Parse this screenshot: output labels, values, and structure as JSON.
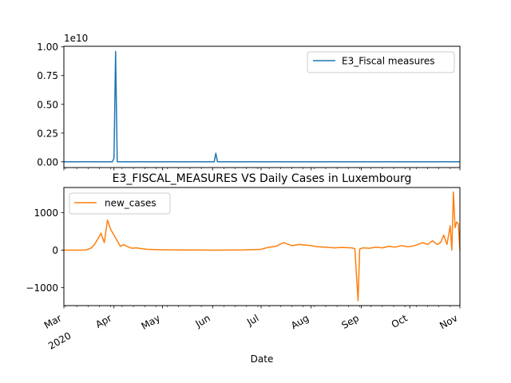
{
  "chart_data": [
    {
      "type": "line",
      "title": "",
      "xlabel": "",
      "ylabel": "",
      "offset_text": "1e10",
      "xlim": [
        "2020-03-01",
        "2020-11-01"
      ],
      "ylim": [
        -0.5,
        10.05
      ],
      "ytick_values": [
        0,
        2.5,
        5,
        7.5,
        10
      ],
      "yticks": [
        "0.00",
        "0.25",
        "0.50",
        "0.75",
        "1.00"
      ],
      "legend": {
        "location": "upper right",
        "entries": [
          "E3_Fiscal measures"
        ]
      },
      "series": [
        {
          "name": "E3_Fiscal measures",
          "color": "#1f77b4",
          "points": [
            [
              "2020-03-01",
              0
            ],
            [
              "2020-03-31",
              0
            ],
            [
              "2020-04-01",
              0.3
            ],
            [
              "2020-04-02",
              9.6
            ],
            [
              "2020-04-03",
              0
            ],
            [
              "2020-06-02",
              0
            ],
            [
              "2020-06-03",
              0.75
            ],
            [
              "2020-06-04",
              0
            ],
            [
              "2020-11-01",
              0
            ]
          ]
        }
      ]
    },
    {
      "type": "line",
      "title": "E3_FISCAL_MEASURES VS Daily Cases in Luxembourg",
      "xlabel": "Date",
      "ylabel": "",
      "xlim": [
        "2020-03-01",
        "2020-11-01"
      ],
      "ylim": [
        -1480,
        1670
      ],
      "ytick_values": [
        -1000,
        0,
        1000
      ],
      "yticks": [
        "−1000",
        "0",
        "1000"
      ],
      "xticks": [
        {
          "date": "2020-03-01",
          "label": "Mar",
          "sublabel": "2020"
        },
        {
          "date": "2020-04-01",
          "label": "Apr"
        },
        {
          "date": "2020-05-01",
          "label": "May"
        },
        {
          "date": "2020-06-01",
          "label": "Jun"
        },
        {
          "date": "2020-07-01",
          "label": "Jul"
        },
        {
          "date": "2020-08-01",
          "label": "Aug"
        },
        {
          "date": "2020-09-01",
          "label": "Sep"
        },
        {
          "date": "2020-10-01",
          "label": "Oct"
        },
        {
          "date": "2020-11-01",
          "label": "Nov"
        }
      ],
      "legend": {
        "location": "upper left",
        "entries": [
          "new_cases"
        ]
      },
      "series": [
        {
          "name": "new_cases",
          "color": "#ff7f0e",
          "points": [
            [
              "2020-03-01",
              0
            ],
            [
              "2020-03-10",
              0
            ],
            [
              "2020-03-15",
              5
            ],
            [
              "2020-03-18",
              60
            ],
            [
              "2020-03-20",
              150
            ],
            [
              "2020-03-22",
              300
            ],
            [
              "2020-03-24",
              450
            ],
            [
              "2020-03-26",
              200
            ],
            [
              "2020-03-28",
              800
            ],
            [
              "2020-03-30",
              550
            ],
            [
              "2020-04-01",
              400
            ],
            [
              "2020-04-03",
              250
            ],
            [
              "2020-04-05",
              100
            ],
            [
              "2020-04-07",
              150
            ],
            [
              "2020-04-09",
              100
            ],
            [
              "2020-04-12",
              50
            ],
            [
              "2020-04-15",
              60
            ],
            [
              "2020-04-18",
              40
            ],
            [
              "2020-04-22",
              20
            ],
            [
              "2020-04-26",
              15
            ],
            [
              "2020-05-01",
              10
            ],
            [
              "2020-05-10",
              5
            ],
            [
              "2020-06-01",
              0
            ],
            [
              "2020-06-20",
              5
            ],
            [
              "2020-07-01",
              20
            ],
            [
              "2020-07-05",
              70
            ],
            [
              "2020-07-10",
              100
            ],
            [
              "2020-07-15",
              200
            ],
            [
              "2020-07-20",
              120
            ],
            [
              "2020-07-25",
              150
            ],
            [
              "2020-08-01",
              120
            ],
            [
              "2020-08-05",
              90
            ],
            [
              "2020-08-10",
              80
            ],
            [
              "2020-08-15",
              60
            ],
            [
              "2020-08-20",
              70
            ],
            [
              "2020-08-26",
              60
            ],
            [
              "2020-08-28",
              40
            ],
            [
              "2020-08-30",
              -1350
            ],
            [
              "2020-08-31",
              30
            ],
            [
              "2020-09-02",
              60
            ],
            [
              "2020-09-06",
              50
            ],
            [
              "2020-09-10",
              80
            ],
            [
              "2020-09-14",
              60
            ],
            [
              "2020-09-18",
              100
            ],
            [
              "2020-09-22",
              80
            ],
            [
              "2020-09-26",
              120
            ],
            [
              "2020-09-30",
              90
            ],
            [
              "2020-10-03",
              110
            ],
            [
              "2020-10-06",
              150
            ],
            [
              "2020-10-09",
              200
            ],
            [
              "2020-10-12",
              150
            ],
            [
              "2020-10-15",
              250
            ],
            [
              "2020-10-18",
              150
            ],
            [
              "2020-10-20",
              200
            ],
            [
              "2020-10-22",
              400
            ],
            [
              "2020-10-24",
              150
            ],
            [
              "2020-10-26",
              650
            ],
            [
              "2020-10-27",
              0
            ],
            [
              "2020-10-28",
              1550
            ],
            [
              "2020-10-29",
              600
            ],
            [
              "2020-10-30",
              750
            ],
            [
              "2020-10-31",
              700
            ],
            [
              "2020-11-01",
              0
            ]
          ]
        }
      ]
    }
  ]
}
